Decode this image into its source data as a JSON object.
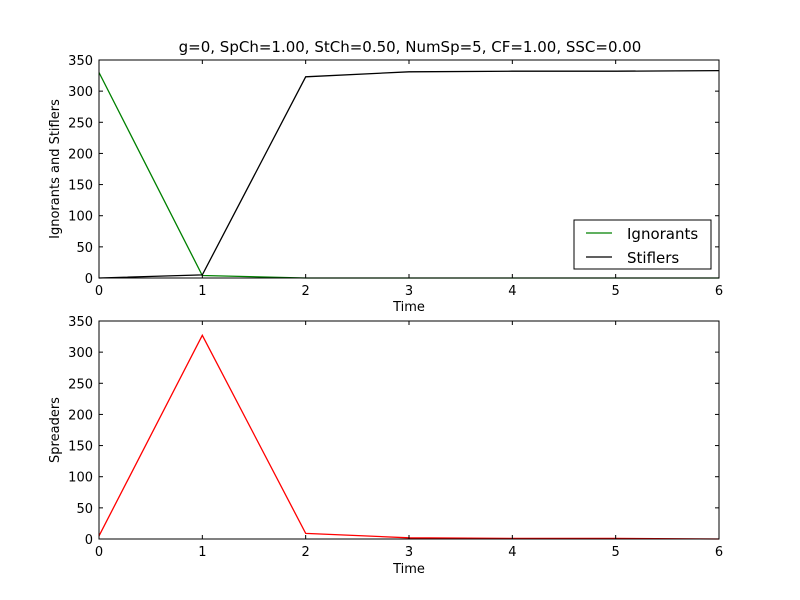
{
  "colors": {
    "ignorants": "#008000",
    "stiflers": "#000000",
    "spreaders": "#ff0000"
  },
  "chart_data": [
    {
      "type": "line",
      "title": "g=0, SpCh=1.00, StCh=0.50, NumSp=5, CF=1.00, SSC=0.00",
      "xlabel": "Time",
      "ylabel": "Ignorants and Stiflers",
      "xlim": [
        0,
        6
      ],
      "ylim": [
        0,
        350
      ],
      "xticks": [
        "0",
        "1",
        "2",
        "3",
        "4",
        "5",
        "6"
      ],
      "yticks": [
        "0",
        "50",
        "100",
        "150",
        "200",
        "250",
        "300",
        "350"
      ],
      "x": [
        0,
        1,
        2,
        3,
        4,
        5,
        6
      ],
      "legend_position": "lower-right",
      "series": [
        {
          "name": "Ignorants",
          "color": "#008000",
          "values": [
            330,
            4,
            0,
            0,
            0,
            0,
            0
          ]
        },
        {
          "name": "Stiflers",
          "color": "#000000",
          "values": [
            0,
            5,
            323,
            331,
            332,
            332,
            333
          ]
        }
      ]
    },
    {
      "type": "line",
      "xlabel": "Time",
      "ylabel": "Spreaders",
      "xlim": [
        0,
        6
      ],
      "ylim": [
        0,
        350
      ],
      "xticks": [
        "0",
        "1",
        "2",
        "3",
        "4",
        "5",
        "6"
      ],
      "yticks": [
        "0",
        "50",
        "100",
        "150",
        "200",
        "250",
        "300",
        "350"
      ],
      "x": [
        0,
        1,
        2,
        3,
        4,
        5,
        6
      ],
      "series": [
        {
          "color": "#ff0000",
          "values": [
            5,
            327,
            9,
            2,
            1,
            1,
            0
          ]
        }
      ]
    }
  ]
}
